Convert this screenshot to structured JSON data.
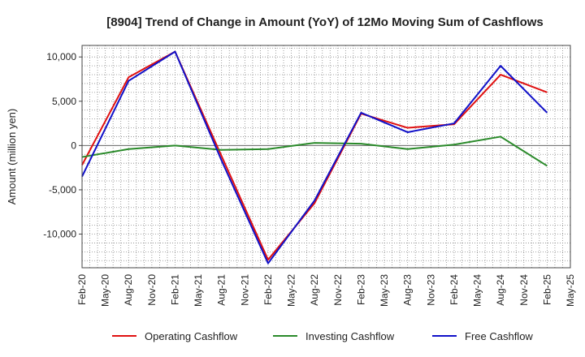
{
  "chart_data": {
    "type": "line",
    "title": "[8904]  Trend of Change in Amount (YoY) of 12Mo Moving Sum of Cashflows",
    "xlabel": "",
    "ylabel": "Amount (million yen)",
    "ylim": [
      -13800,
      11300
    ],
    "yticks": [
      10000,
      5000,
      0,
      -5000,
      -10000
    ],
    "ytick_labels": [
      "10,000",
      "5,000",
      "0",
      "-5,000",
      "-10,000"
    ],
    "categories": [
      "Feb-20",
      "May-20",
      "Aug-20",
      "Nov-20",
      "Feb-21",
      "May-21",
      "Aug-21",
      "Nov-21",
      "Feb-22",
      "May-22",
      "Aug-22",
      "Nov-22",
      "Feb-23",
      "May-23",
      "Aug-23",
      "Nov-23",
      "Feb-24",
      "May-24",
      "Aug-24",
      "Nov-24",
      "Feb-25",
      "May-25"
    ],
    "grid": true,
    "legend_position": "bottom",
    "series": [
      {
        "name": "Operating Cashflow",
        "color": "#e01010",
        "points": [
          [
            0,
            -2200
          ],
          [
            2,
            7700
          ],
          [
            4,
            10600
          ],
          [
            6,
            -1200
          ],
          [
            8,
            -12900
          ],
          [
            10,
            -6500
          ],
          [
            12,
            3600
          ],
          [
            14,
            2000
          ],
          [
            16,
            2400
          ],
          [
            18,
            8000
          ],
          [
            20,
            6000
          ]
        ]
      },
      {
        "name": "Investing Cashflow",
        "color": "#2a8a2a",
        "points": [
          [
            0,
            -1300
          ],
          [
            2,
            -400
          ],
          [
            4,
            0
          ],
          [
            6,
            -500
          ],
          [
            8,
            -400
          ],
          [
            10,
            300
          ],
          [
            12,
            200
          ],
          [
            14,
            -400
          ],
          [
            16,
            100
          ],
          [
            18,
            1000
          ],
          [
            20,
            -2300
          ]
        ]
      },
      {
        "name": "Free Cashflow",
        "color": "#1010c8",
        "points": [
          [
            0,
            -3500
          ],
          [
            2,
            7300
          ],
          [
            4,
            10600
          ],
          [
            6,
            -1700
          ],
          [
            8,
            -13300
          ],
          [
            10,
            -6200
          ],
          [
            12,
            3700
          ],
          [
            14,
            1500
          ],
          [
            16,
            2500
          ],
          [
            18,
            9000
          ],
          [
            20,
            3700
          ]
        ]
      }
    ]
  }
}
